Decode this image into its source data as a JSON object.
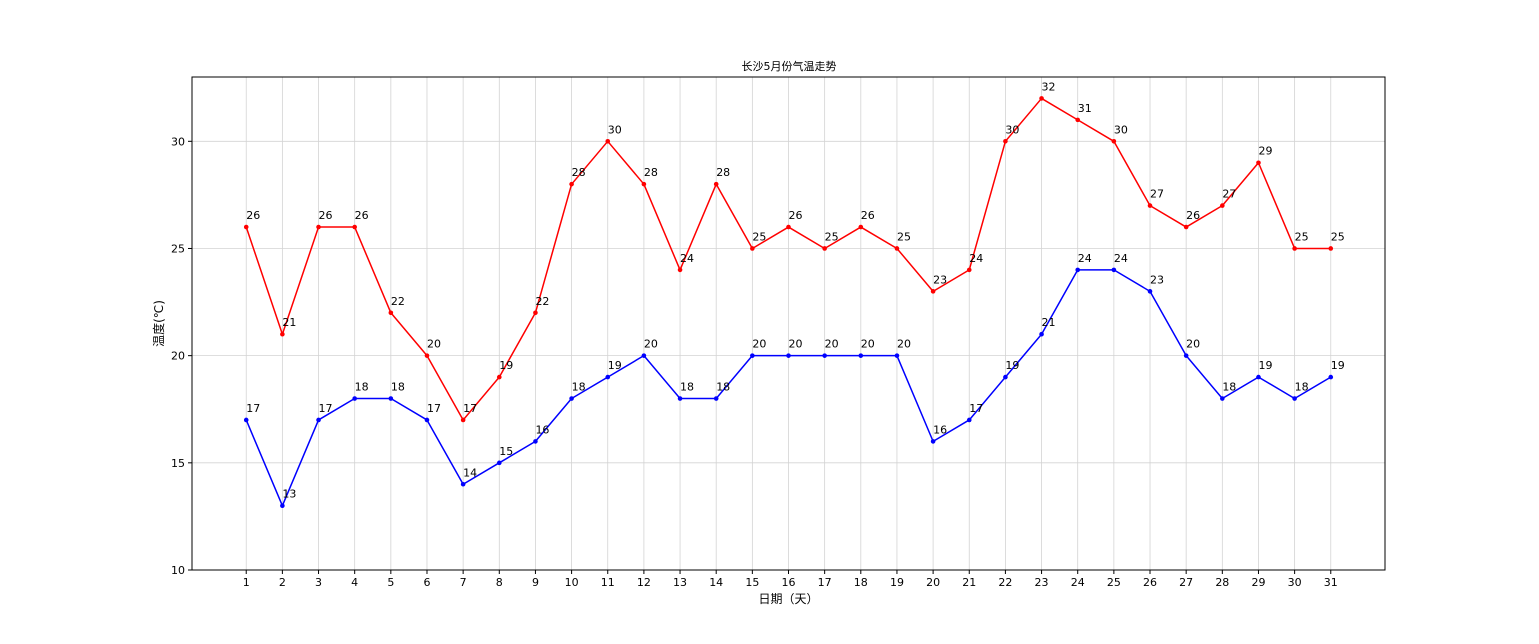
{
  "chart_data": {
    "type": "line",
    "title": "长沙5月份气温走势",
    "xlabel": "日期（天）",
    "ylabel": "温度(℃)",
    "x": [
      1,
      2,
      3,
      4,
      5,
      6,
      7,
      8,
      9,
      10,
      11,
      12,
      13,
      14,
      15,
      16,
      17,
      18,
      19,
      20,
      21,
      22,
      23,
      24,
      25,
      26,
      27,
      28,
      29,
      30,
      31
    ],
    "x_tick_labels": [
      "1",
      "2",
      "3",
      "4",
      "5",
      "6",
      "7",
      "8",
      "9",
      "10",
      "11",
      "12",
      "13",
      "14",
      "15",
      "16",
      "17",
      "18",
      "19",
      "20",
      "21",
      "22",
      "23",
      "24",
      "25",
      "26",
      "27",
      "28",
      "29",
      "30",
      "31"
    ],
    "xlim": [
      -0.5,
      32.5
    ],
    "ylim": [
      10,
      33
    ],
    "y_ticks": [
      10,
      15,
      20,
      25,
      30
    ],
    "y_tick_labels": [
      "10",
      "15",
      "20",
      "25",
      "30"
    ],
    "grid": true,
    "series": [
      {
        "color": "#ff0000",
        "values": [
          26,
          21,
          26,
          26,
          22,
          20,
          17,
          19,
          22,
          28,
          30,
          28,
          24,
          28,
          25,
          26,
          25,
          26,
          25,
          23,
          24,
          30,
          32,
          31,
          30,
          27,
          26,
          27,
          29,
          25,
          25
        ]
      },
      {
        "color": "#0000ff",
        "values": [
          17,
          13,
          17,
          18,
          18,
          17,
          14,
          15,
          16,
          18,
          19,
          20,
          18,
          18,
          20,
          20,
          20,
          20,
          20,
          16,
          17,
          19,
          21,
          24,
          24,
          23,
          20,
          18,
          19,
          18,
          19
        ]
      }
    ]
  }
}
